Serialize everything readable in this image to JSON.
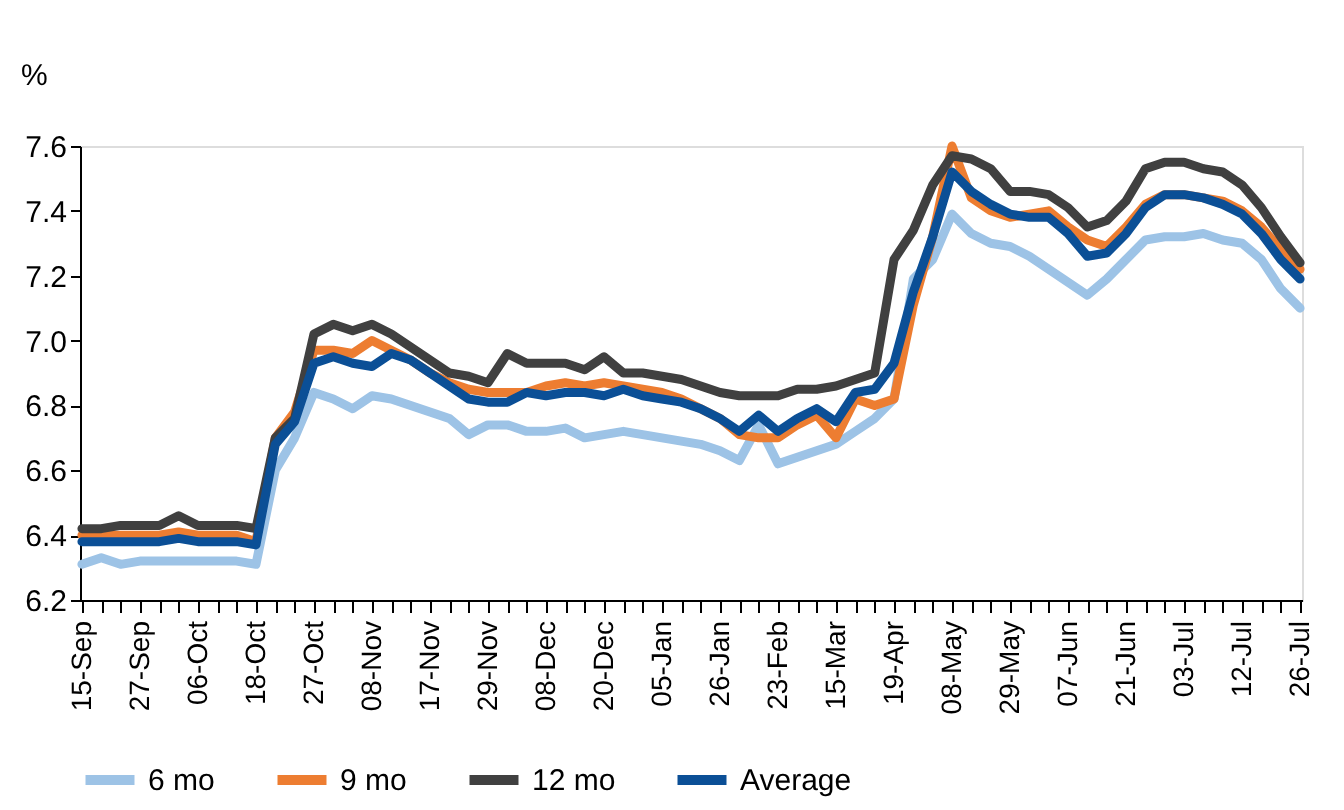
{
  "chart_data": {
    "type": "line",
    "ylabel": "%",
    "legend": "bottom",
    "grid": false,
    "marker": "none",
    "line_style": "solid",
    "categories": [
      "15-Sep",
      null,
      null,
      "27-Sep",
      null,
      null,
      "06-Oct",
      null,
      null,
      "18-Oct",
      null,
      null,
      "27-Oct",
      null,
      null,
      "08-Nov",
      null,
      null,
      "17-Nov",
      null,
      null,
      "29-Nov",
      null,
      null,
      "08-Dec",
      null,
      null,
      "20-Dec",
      null,
      null,
      "05-Jan",
      null,
      null,
      "26-Jan",
      null,
      null,
      "23-Feb",
      null,
      null,
      "15-Mar",
      null,
      null,
      "19-Apr",
      null,
      null,
      "08-May",
      null,
      null,
      "29-May",
      null,
      null,
      "07-Jun",
      null,
      null,
      "21-Jun",
      null,
      null,
      "03-Jul",
      null,
      null,
      "12-Jul",
      null,
      null,
      "26-Jul"
    ],
    "ylim": [
      6.2,
      7.6
    ],
    "yticks": [
      6.2,
      6.4,
      6.6,
      6.8,
      {
        "value": 7,
        "label": "7.0"
      },
      7.2,
      7.4,
      7.6
    ],
    "series": [
      {
        "name": "6 mo",
        "color": "#9dc3e6",
        "values": [
          6.31,
          6.33,
          6.31,
          6.32,
          6.32,
          6.32,
          6.32,
          6.32,
          6.32,
          6.31,
          6.6,
          6.7,
          6.84,
          6.82,
          6.79,
          6.83,
          6.82,
          6.8,
          6.78,
          6.76,
          6.71,
          6.74,
          6.74,
          6.72,
          6.72,
          6.73,
          6.7,
          6.71,
          6.72,
          6.71,
          6.7,
          6.69,
          6.68,
          6.66,
          6.63,
          6.74,
          6.62,
          6.64,
          6.66,
          6.68,
          6.72,
          6.76,
          6.82,
          7.19,
          7.25,
          7.39,
          7.33,
          7.3,
          7.29,
          7.26,
          7.22,
          7.18,
          7.14,
          7.19,
          7.25,
          7.31,
          7.32,
          7.32,
          7.33,
          7.31,
          7.3,
          7.25,
          7.16,
          7.1
        ]
      },
      {
        "name": "9 mo",
        "color": "#ed7d31",
        "values": [
          6.4,
          6.4,
          6.4,
          6.4,
          6.4,
          6.41,
          6.4,
          6.4,
          6.4,
          6.38,
          6.7,
          6.78,
          6.97,
          6.97,
          6.96,
          7.0,
          6.97,
          6.94,
          6.9,
          6.87,
          6.85,
          6.84,
          6.84,
          6.84,
          6.86,
          6.87,
          6.86,
          6.87,
          6.86,
          6.85,
          6.84,
          6.82,
          6.79,
          6.76,
          6.71,
          6.7,
          6.7,
          6.74,
          6.77,
          6.7,
          6.82,
          6.8,
          6.82,
          7.11,
          7.32,
          7.6,
          7.44,
          7.4,
          7.38,
          7.39,
          7.4,
          7.35,
          7.31,
          7.29,
          7.35,
          7.42,
          7.45,
          7.45,
          7.44,
          7.43,
          7.4,
          7.35,
          7.28,
          7.22
        ]
      },
      {
        "name": "12 mo",
        "color": "#404040",
        "values": [
          6.42,
          6.42,
          6.43,
          6.43,
          6.43,
          6.46,
          6.43,
          6.43,
          6.43,
          6.42,
          6.7,
          6.76,
          7.02,
          7.05,
          7.03,
          7.05,
          7.02,
          6.98,
          6.94,
          6.9,
          6.89,
          6.87,
          6.96,
          6.93,
          6.93,
          6.93,
          6.91,
          6.95,
          6.9,
          6.9,
          6.89,
          6.88,
          6.86,
          6.84,
          6.83,
          6.83,
          6.83,
          6.85,
          6.85,
          6.86,
          6.88,
          6.9,
          7.25,
          7.34,
          7.48,
          7.57,
          7.56,
          7.53,
          7.46,
          7.46,
          7.45,
          7.41,
          7.35,
          7.37,
          7.43,
          7.53,
          7.55,
          7.55,
          7.53,
          7.52,
          7.48,
          7.41,
          7.32,
          7.24
        ]
      },
      {
        "name": "Average",
        "color": "#0b4f96",
        "values": [
          6.38,
          6.38,
          6.38,
          6.38,
          6.38,
          6.39,
          6.38,
          6.38,
          6.38,
          6.37,
          6.68,
          6.75,
          6.93,
          6.95,
          6.93,
          6.92,
          6.96,
          6.94,
          6.9,
          6.86,
          6.82,
          6.81,
          6.81,
          6.84,
          6.83,
          6.84,
          6.84,
          6.83,
          6.85,
          6.83,
          6.82,
          6.81,
          6.79,
          6.76,
          6.72,
          6.77,
          6.72,
          6.76,
          6.79,
          6.75,
          6.84,
          6.85,
          6.93,
          7.15,
          7.32,
          7.52,
          7.46,
          7.42,
          7.39,
          7.38,
          7.38,
          7.33,
          7.26,
          7.27,
          7.33,
          7.41,
          7.45,
          7.45,
          7.44,
          7.42,
          7.39,
          7.33,
          7.25,
          7.19
        ]
      }
    ]
  }
}
